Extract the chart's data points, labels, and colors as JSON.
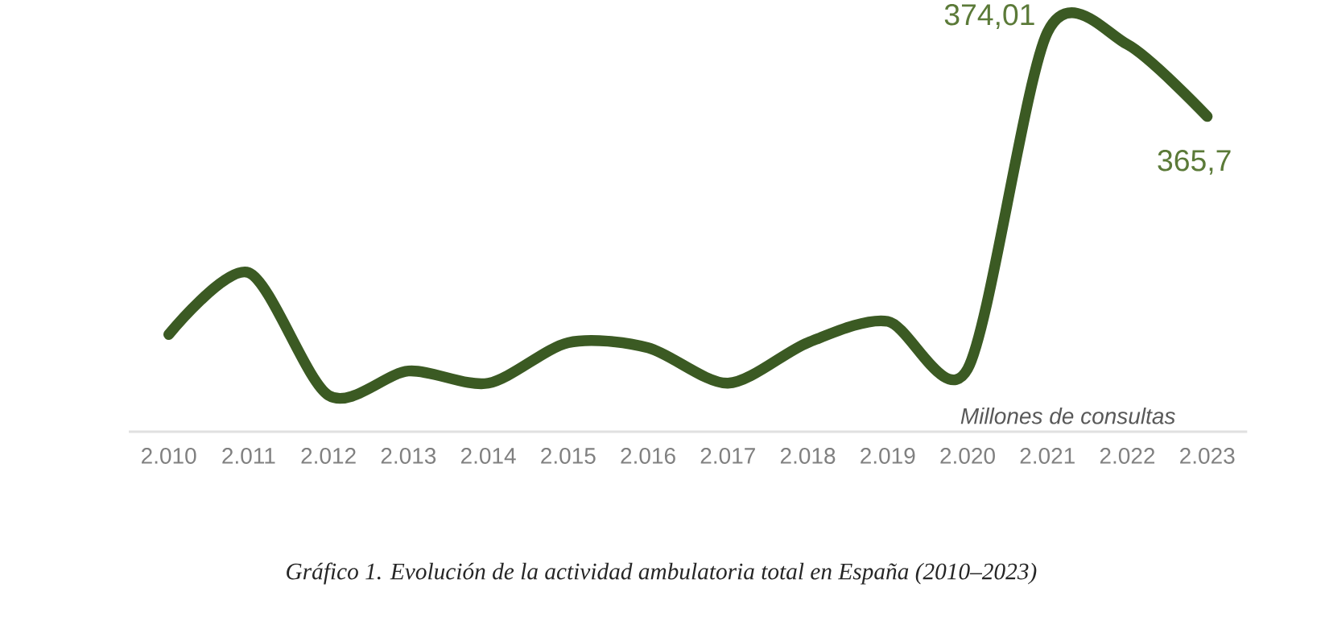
{
  "chart_data": {
    "type": "line",
    "categories": [
      "2.010",
      "2.011",
      "2.012",
      "2.013",
      "2.014",
      "2.015",
      "2.016",
      "2.017",
      "2.018",
      "2.019",
      "2.020",
      "2.021",
      "2.022",
      "2.023"
    ],
    "series": [
      {
        "color": "#3b5a23",
        "values": [
          344.2,
          350.3,
          338.2,
          340.6,
          339.4,
          343.4,
          342.9,
          339.4,
          343.4,
          345.5,
          340.8,
          374.01,
          372.8,
          365.7
        ],
        "value_labels": [
          null,
          null,
          null,
          null,
          null,
          null,
          null,
          null,
          null,
          null,
          null,
          "374,01",
          null,
          "365,7"
        ]
      }
    ],
    "tick_labels": "x",
    "grid": false,
    "marker": "none",
    "line_style": "solid",
    "annotations": [
      "Millones de consultas",
      "Gráfico 1. Evolución de la actividad ambulatoria total en España (2010–2023)"
    ]
  }
}
